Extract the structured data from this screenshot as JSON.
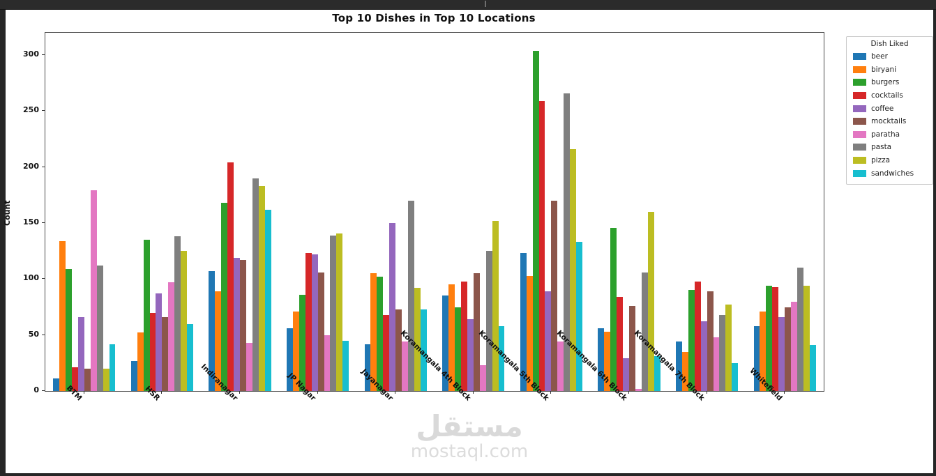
{
  "chart_data": {
    "type": "bar",
    "title": "Top 10 Dishes in Top 10 Locations",
    "xlabel": "",
    "ylabel": "Count",
    "ylim": [
      0,
      320
    ],
    "yticks": [
      0,
      50,
      100,
      150,
      200,
      250,
      300
    ],
    "grid": false,
    "legend_title": "Dish Liked",
    "legend_position": "outside-upper-right",
    "categories": [
      "BTM",
      "HSR",
      "Indiranagar",
      "JP Nagar",
      "Jayanagar",
      "Koramangala 4th Block",
      "Koramangala 5th Block",
      "Koramangala 6th Block",
      "Koramangala 7th Block",
      "Whitefield"
    ],
    "series": [
      {
        "name": "beer",
        "color": "#1f77b4",
        "values": [
          11,
          27,
          107,
          56,
          42,
          85,
          123,
          56,
          44,
          58
        ]
      },
      {
        "name": "biryani",
        "color": "#ff7f0e",
        "values": [
          134,
          52,
          89,
          71,
          105,
          95,
          103,
          53,
          35,
          71
        ]
      },
      {
        "name": "burgers",
        "color": "#2ca02c",
        "values": [
          109,
          135,
          168,
          86,
          102,
          75,
          304,
          146,
          90,
          94
        ]
      },
      {
        "name": "cocktails",
        "color": "#d62728",
        "values": [
          21,
          70,
          204,
          123,
          68,
          98,
          259,
          84,
          98,
          93
        ]
      },
      {
        "name": "coffee",
        "color": "#9467bd",
        "values": [
          66,
          87,
          119,
          122,
          150,
          64,
          89,
          29,
          62,
          66
        ]
      },
      {
        "name": "mocktails",
        "color": "#8c564b",
        "values": [
          20,
          66,
          117,
          106,
          73,
          105,
          170,
          76,
          89,
          75
        ]
      },
      {
        "name": "paratha",
        "color": "#e377c2",
        "values": [
          179,
          97,
          43,
          50,
          44,
          23,
          44,
          2,
          48,
          80
        ]
      },
      {
        "name": "pasta",
        "color": "#7f7f7f",
        "values": [
          112,
          138,
          190,
          139,
          170,
          125,
          266,
          106,
          68,
          110
        ]
      },
      {
        "name": "pizza",
        "color": "#bcbd22",
        "values": [
          20,
          125,
          183,
          141,
          92,
          152,
          216,
          160,
          77,
          94
        ]
      },
      {
        "name": "sandwiches",
        "color": "#17becf",
        "values": [
          42,
          60,
          162,
          45,
          73,
          58,
          133,
          31,
          25,
          41
        ]
      }
    ]
  },
  "watermark": {
    "arabic": "مستقل",
    "latin": "mostaql.com"
  }
}
